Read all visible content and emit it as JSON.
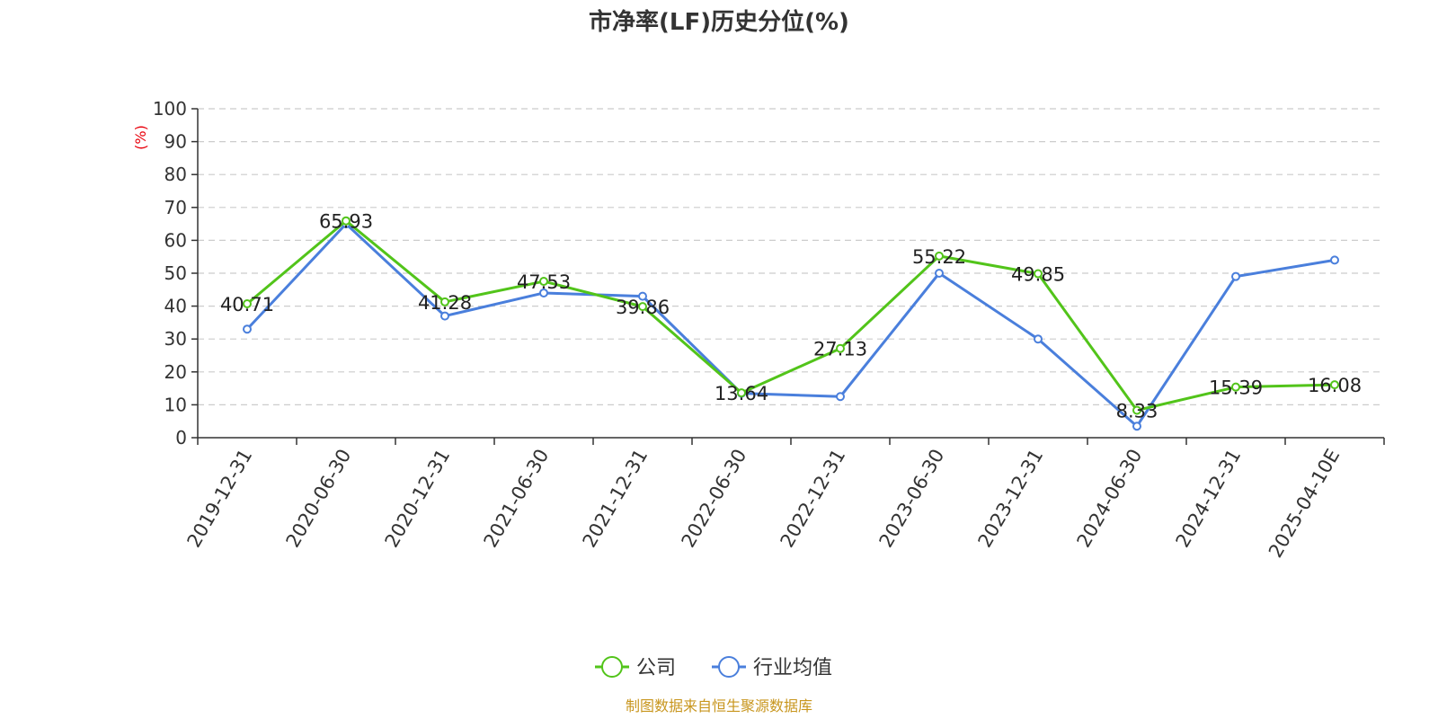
{
  "source_note": "制图数据来自恒生聚源数据库",
  "colors": {
    "company": "#52c41a",
    "industry": "#4a7fdc",
    "ylabel": "#e8000b",
    "source": "#c8961e",
    "grid": "#cccccc",
    "axis": "#333333"
  },
  "chart_data": {
    "type": "line",
    "title": "市净率(LF)历史分位(%)",
    "xlabel": "",
    "ylabel": "(%)",
    "ylim": [
      0,
      100
    ],
    "yticks": [
      0,
      10,
      20,
      30,
      40,
      50,
      60,
      70,
      80,
      90,
      100
    ],
    "grid": true,
    "legend_position": "bottom-center",
    "categories": [
      "2019-12-31",
      "2020-06-30",
      "2020-12-31",
      "2021-06-30",
      "2021-12-31",
      "2022-06-30",
      "2022-12-31",
      "2023-06-30",
      "2023-12-31",
      "2024-06-30",
      "2024-12-31",
      "2025-04-10E"
    ],
    "series": [
      {
        "name": "公司",
        "values": [
          40.71,
          65.93,
          41.28,
          47.53,
          39.86,
          13.64,
          27.13,
          55.22,
          49.85,
          8.33,
          15.39,
          16.08
        ],
        "labels": [
          "40.71",
          "65.93",
          "41.28",
          "47.53",
          "39.86",
          "13.64",
          "27.13",
          "55.22",
          "49.85",
          "8.33",
          "15.39",
          "16.08"
        ]
      },
      {
        "name": "行业均值",
        "values": [
          33,
          65,
          37,
          44,
          43,
          13.5,
          12.5,
          50,
          30,
          3.5,
          49,
          54
        ]
      }
    ]
  }
}
